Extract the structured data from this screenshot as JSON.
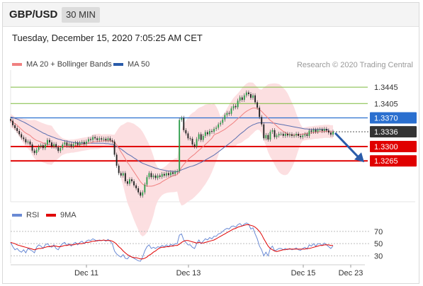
{
  "header": {
    "pair": "GBP/USD",
    "timeframe": "30 MIN"
  },
  "datetime": "Tuesday, December 15, 2020 7:05:25 AM CET",
  "copyright": "Research © 2020 Trading Central",
  "legend": {
    "ma_bb_label": "MA 20 + Bollinger Bands",
    "ma_bb_color": "#f08080",
    "ma50_label": "MA 50",
    "ma50_color": "#2a5caa",
    "rsi_label": "RSI",
    "rsi_color": "#6a8ad4",
    "ma9_label": "9MA",
    "ma9_color": "#e00000"
  },
  "chart_data": [
    {
      "type": "candlestick",
      "ylim": [
        1.3165,
        1.3485
      ],
      "x_tick_labels": [
        "Dec 11",
        "Dec 13",
        "Dec 15",
        "Dec 23"
      ],
      "levels": [
        {
          "value": 1.3445,
          "label": "1.3445",
          "kind": "resistance",
          "color": "#7cba3c"
        },
        {
          "value": 1.3405,
          "label": "1.3405",
          "kind": "resistance",
          "color": "#7cba3c"
        },
        {
          "value": 1.337,
          "label": "1.3370",
          "kind": "pivot",
          "color": "#2a6fcf"
        },
        {
          "value": 1.3336,
          "label": "1.3336",
          "kind": "last-price",
          "color": "#333333"
        },
        {
          "value": 1.33,
          "label": "1.3300",
          "kind": "support",
          "color": "#e00000"
        },
        {
          "value": 1.3265,
          "label": "1.3265",
          "kind": "support",
          "color": "#e00000"
        }
      ],
      "forecast_arrow": {
        "from": 1.3333,
        "to": 1.3265,
        "direction": "down",
        "color": "#2a5caa"
      },
      "closes": [
        1.3363,
        1.3352,
        1.3345,
        1.3338,
        1.333,
        1.3322,
        1.3318,
        1.331,
        1.3312,
        1.3305,
        1.329,
        1.3284,
        1.3292,
        1.33,
        1.3303,
        1.3296,
        1.3305,
        1.3316,
        1.331,
        1.33,
        1.3306,
        1.3298,
        1.3289,
        1.3296,
        1.3305,
        1.331,
        1.3302,
        1.3306,
        1.33,
        1.3306,
        1.3309,
        1.3304,
        1.3309,
        1.3311,
        1.3306,
        1.3312,
        1.3318,
        1.3316,
        1.3323,
        1.332,
        1.3316,
        1.332,
        1.3317,
        1.3319,
        1.3315,
        1.332,
        1.3315,
        1.3312,
        1.328,
        1.3253,
        1.3235,
        1.3229,
        1.3235,
        1.3215,
        1.3209,
        1.322,
        1.3215,
        1.3205,
        1.3198,
        1.3188,
        1.318,
        1.3188,
        1.3207,
        1.3225,
        1.3235,
        1.3225,
        1.3229,
        1.3223,
        1.3229,
        1.3226,
        1.3233,
        1.3229,
        1.3235,
        1.323,
        1.3237,
        1.3233,
        1.3238,
        1.324,
        1.3365,
        1.337,
        1.334,
        1.3332,
        1.332,
        1.3319,
        1.3305,
        1.33,
        1.3318,
        1.333,
        1.3316,
        1.3326,
        1.3335,
        1.333,
        1.3338,
        1.3336,
        1.3343,
        1.3346,
        1.3354,
        1.3358,
        1.3366,
        1.3377,
        1.3382,
        1.338,
        1.3393,
        1.3399,
        1.3396,
        1.3412,
        1.342,
        1.3414,
        1.3425,
        1.3432,
        1.3428,
        1.3419,
        1.3425,
        1.3408,
        1.3395,
        1.3372,
        1.3354,
        1.332,
        1.3328,
        1.3317,
        1.3336,
        1.334,
        1.3323,
        1.3327,
        1.3331,
        1.3331,
        1.3326,
        1.3331,
        1.3327,
        1.333,
        1.3326,
        1.3327,
        1.3331,
        1.3326,
        1.3323,
        1.3327,
        1.333,
        1.3326,
        1.3339,
        1.3336,
        1.3341,
        1.3336,
        1.3341,
        1.3342,
        1.3338,
        1.3343,
        1.3339,
        1.3334,
        1.3329,
        1.3336
      ],
      "ma20": [
        1.3364,
        1.336,
        1.3356,
        1.3352,
        1.3347,
        1.3342,
        1.3337,
        1.3333,
        1.333,
        1.3327,
        1.3322,
        1.3318,
        1.3315,
        1.3313,
        1.3311,
        1.3309,
        1.3307,
        1.3305,
        1.3304,
        1.3303,
        1.3302,
        1.3301,
        1.33,
        1.33,
        1.33,
        1.33,
        1.33,
        1.33,
        1.3301,
        1.3301,
        1.3302,
        1.3303,
        1.3304,
        1.3305,
        1.3306,
        1.3307,
        1.3308,
        1.3309,
        1.3311,
        1.3312,
        1.3312,
        1.3313,
        1.3313,
        1.3314,
        1.3314,
        1.3314,
        1.3314,
        1.3313,
        1.331,
        1.3304,
        1.3296,
        1.3287,
        1.3279,
        1.327,
        1.3261,
        1.3254,
        1.3246,
        1.3238,
        1.323,
        1.3222,
        1.3214,
        1.3208,
        1.3205,
        1.3203,
        1.3203,
        1.3203,
        1.3204,
        1.3206,
        1.3208,
        1.321,
        1.3214,
        1.3217,
        1.322,
        1.3223,
        1.3226,
        1.3228,
        1.323,
        1.3231,
        1.324,
        1.3249,
        1.3256,
        1.3262,
        1.3268,
        1.3273,
        1.3277,
        1.3281,
        1.3286,
        1.3291,
        1.3295,
        1.33,
        1.3305,
        1.331,
        1.3315,
        1.332,
        1.3328,
        1.3331,
        1.3333,
        1.3336,
        1.3339,
        1.3342,
        1.3346,
        1.335,
        1.3354,
        1.3358,
        1.3363,
        1.3368,
        1.3372,
        1.3377,
        1.3382,
        1.3386,
        1.3389,
        1.3392,
        1.3394,
        1.3394,
        1.3393,
        1.339,
        1.3386,
        1.338,
        1.3375,
        1.3369,
        1.3364,
        1.336,
        1.3355,
        1.335,
        1.3345,
        1.3341,
        1.3337,
        1.3334,
        1.3331,
        1.3329,
        1.3328,
        1.3328,
        1.3328,
        1.3329,
        1.333,
        1.333,
        1.3331,
        1.3332,
        1.3333,
        1.3333,
        1.3334,
        1.3335,
        1.3335,
        1.3336,
        1.3336,
        1.3337,
        1.3337,
        1.3337,
        1.3336,
        1.3336
      ],
      "ma50": [
        1.3372,
        1.3371,
        1.3369,
        1.3367,
        1.3365,
        1.3362,
        1.336,
        1.3357,
        1.3354,
        1.3351,
        1.3348,
        1.3345,
        1.3342,
        1.3339,
        1.3336,
        1.3333,
        1.3331,
        1.3328,
        1.3326,
        1.3324,
        1.3322,
        1.332,
        1.3318,
        1.3317,
        1.3315,
        1.3314,
        1.3313,
        1.3312,
        1.3311,
        1.331,
        1.331,
        1.3309,
        1.3309,
        1.3308,
        1.3308,
        1.3308,
        1.3308,
        1.3308,
        1.3308,
        1.3308,
        1.3308,
        1.3308,
        1.3308,
        1.3308,
        1.3307,
        1.3307,
        1.3306,
        1.3305,
        1.3303,
        1.33,
        1.3297,
        1.3294,
        1.329,
        1.3286,
        1.3282,
        1.3279,
        1.3276,
        1.3272,
        1.3269,
        1.3265,
        1.3262,
        1.3259,
        1.3257,
        1.3255,
        1.3253,
        1.3251,
        1.3249,
        1.3247,
        1.3246,
        1.3244,
        1.3243,
        1.3242,
        1.3241,
        1.324,
        1.324,
        1.3239,
        1.3239,
        1.3238,
        1.324,
        1.3243,
        1.3245,
        1.3247,
        1.3249,
        1.3251,
        1.3252,
        1.3254,
        1.3256,
        1.3259,
        1.3261,
        1.3264,
        1.3267,
        1.327,
        1.3273,
        1.3276,
        1.3279,
        1.3283,
        1.3287,
        1.3291,
        1.3295,
        1.3299,
        1.3303,
        1.3307,
        1.3311,
        1.3316,
        1.332,
        1.3325,
        1.333,
        1.3334,
        1.3338,
        1.3343,
        1.3347,
        1.335,
        1.3353,
        1.3355,
        1.3357,
        1.3358,
        1.3358,
        1.3358,
        1.3358,
        1.3358,
        1.3358,
        1.3357,
        1.3357,
        1.3356,
        1.3355,
        1.3354,
        1.3353,
        1.3352,
        1.3351,
        1.335,
        1.3349,
        1.3348,
        1.3347,
        1.3346,
        1.3345,
        1.3344,
        1.3343,
        1.3343,
        1.3342,
        1.3342,
        1.3342,
        1.3342,
        1.3342,
        1.3342,
        1.3342,
        1.3342,
        1.3341,
        1.3341
      ]
    },
    {
      "type": "line",
      "ylim": [
        20,
        85
      ],
      "y_ticks": [
        30,
        50,
        70
      ],
      "series": [
        {
          "name": "RSI",
          "values": [
            52,
            45,
            40,
            42,
            38,
            36,
            40,
            35,
            42,
            40,
            38,
            35,
            44,
            48,
            46,
            42,
            48,
            50,
            46,
            44,
            48,
            42,
            40,
            46,
            50,
            52,
            47,
            50,
            46,
            50,
            52,
            48,
            52,
            54,
            50,
            54,
            56,
            55,
            58,
            56,
            54,
            56,
            55,
            56,
            54,
            57,
            54,
            50,
            38,
            33,
            30,
            28,
            32,
            26,
            25,
            30,
            28,
            26,
            24,
            22,
            21,
            28,
            38,
            45,
            48,
            42,
            44,
            42,
            45,
            44,
            47,
            45,
            48,
            45,
            49,
            47,
            50,
            50,
            64,
            66,
            56,
            52,
            48,
            48,
            44,
            42,
            50,
            56,
            50,
            54,
            58,
            56,
            60,
            58,
            62,
            62,
            66,
            67,
            70,
            73,
            75,
            74,
            78,
            79,
            77,
            81,
            83,
            79,
            82,
            84,
            82,
            74,
            76,
            66,
            58,
            46,
            40,
            30,
            36,
            30,
            42,
            46,
            38,
            40,
            42,
            42,
            40,
            42,
            40,
            42,
            40,
            41,
            43,
            40,
            39,
            42,
            44,
            41,
            48,
            46,
            50,
            46,
            50,
            50,
            47,
            51,
            48,
            45,
            42,
            46
          ]
        },
        {
          "name": "9MA",
          "values": [
            52,
            51,
            50,
            48,
            47,
            46,
            45,
            44,
            43,
            42,
            41,
            40,
            41,
            42,
            42,
            43,
            44,
            45,
            45,
            46,
            46,
            46,
            45,
            45,
            46,
            47,
            47,
            48,
            48,
            48,
            49,
            50,
            50,
            50,
            51,
            52,
            52,
            53,
            54,
            54,
            55,
            55,
            55,
            56,
            55,
            55,
            55,
            54,
            52,
            49,
            45,
            42,
            38,
            35,
            32,
            30,
            28,
            27,
            27,
            26,
            25,
            25,
            26,
            28,
            31,
            33,
            36,
            38,
            41,
            43,
            44,
            44,
            45,
            45,
            46,
            46,
            47,
            47,
            49,
            52,
            54,
            55,
            55,
            54,
            53,
            52,
            51,
            52,
            51,
            51,
            52,
            53,
            54,
            55,
            56,
            58,
            60,
            62,
            64,
            66,
            68,
            70,
            72,
            74,
            75,
            77,
            78,
            79,
            80,
            81,
            81,
            80,
            79,
            77,
            74,
            70,
            65,
            58,
            52,
            46,
            42,
            40,
            38,
            37,
            38,
            39,
            40,
            40,
            41,
            41,
            41,
            41,
            41,
            41,
            41,
            41,
            41,
            42,
            42,
            43,
            44,
            45,
            46,
            47,
            47,
            48,
            48,
            48,
            47,
            47
          ]
        }
      ]
    }
  ]
}
